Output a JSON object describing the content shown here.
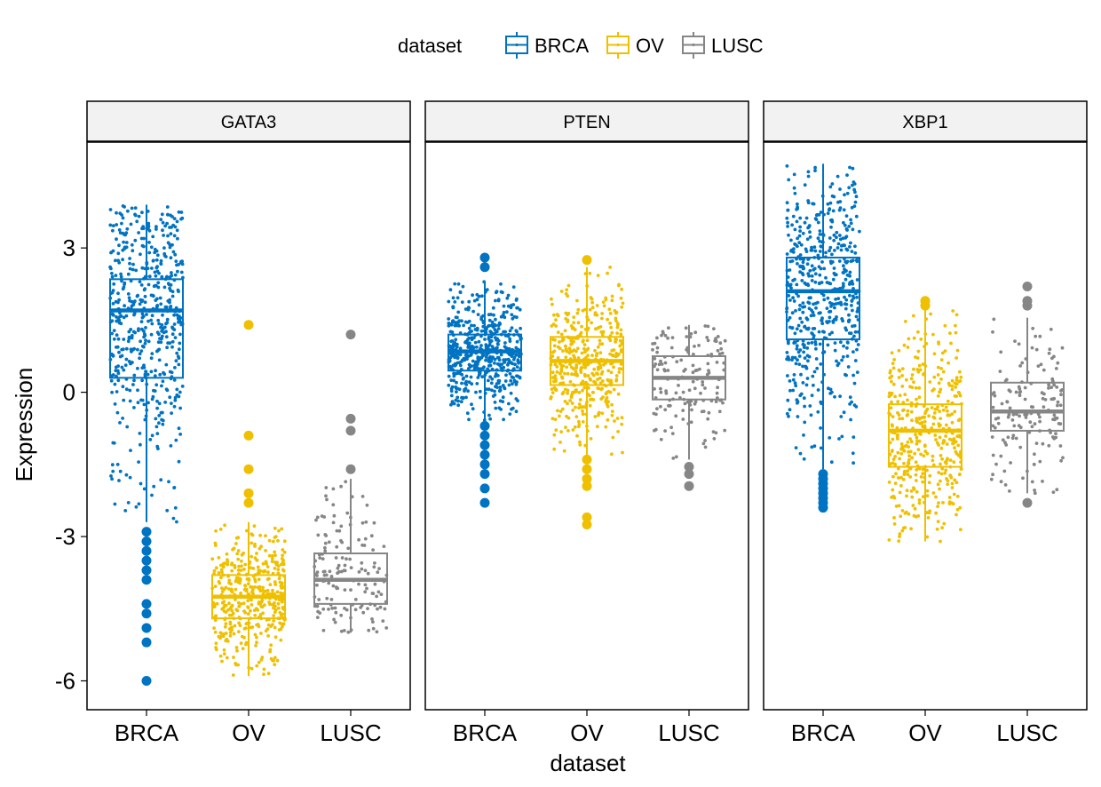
{
  "chart_data": {
    "type": "box",
    "facet_variable": "gene",
    "xlabel": "dataset",
    "ylabel": "Expression",
    "ylim": [
      -6.6,
      5.2
    ],
    "yticks": [
      3,
      0,
      -3,
      -6
    ],
    "ytick_labels": [
      "3",
      "0",
      "-3",
      "-6"
    ],
    "categories": [
      "BRCA",
      "OV",
      "LUSC"
    ],
    "legend": {
      "title": "dataset",
      "position": "top",
      "entries": [
        "BRCA",
        "OV",
        "LUSC"
      ]
    },
    "colors": {
      "BRCA": "#0073C2",
      "OV": "#EFC000",
      "LUSC": "#868686"
    },
    "point_counts": {
      "BRCA": 540,
      "OV": 430,
      "LUSC": 150
    },
    "facets": [
      {
        "label": "GATA3",
        "boxes": [
          {
            "dataset": "BRCA",
            "q1": 0.3,
            "median": 1.7,
            "q3": 2.35,
            "whisker_low": -2.7,
            "whisker_high": 3.9,
            "outliers": [
              -2.9,
              -3.1,
              -3.3,
              -3.5,
              -3.7,
              -3.9,
              -4.4,
              -4.6,
              -4.9,
              -5.2,
              -6.0
            ]
          },
          {
            "dataset": "OV",
            "q1": -4.7,
            "median": -4.25,
            "q3": -3.8,
            "whisker_low": -5.9,
            "whisker_high": -2.7,
            "outliers": [
              1.4,
              -0.9,
              -1.6,
              -2.1,
              -2.3
            ]
          },
          {
            "dataset": "LUSC",
            "q1": -4.4,
            "median": -3.9,
            "q3": -3.35,
            "whisker_low": -5.0,
            "whisker_high": -1.8,
            "outliers": [
              1.2,
              -0.55,
              -0.8,
              -1.6
            ]
          }
        ]
      },
      {
        "label": "PTEN",
        "boxes": [
          {
            "dataset": "BRCA",
            "q1": 0.45,
            "median": 0.85,
            "q3": 1.2,
            "whisker_low": -0.6,
            "whisker_high": 2.3,
            "outliers": [
              2.8,
              2.6,
              -0.7,
              -0.9,
              -1.1,
              -1.3,
              -1.5,
              -1.7,
              -2.0,
              -2.3
            ]
          },
          {
            "dataset": "OV",
            "q1": 0.15,
            "median": 0.65,
            "q3": 1.15,
            "whisker_low": -1.3,
            "whisker_high": 2.6,
            "outliers": [
              2.75,
              -1.4,
              -1.6,
              -1.8,
              -1.95,
              -2.6,
              -2.75
            ]
          },
          {
            "dataset": "LUSC",
            "q1": -0.15,
            "median": 0.3,
            "q3": 0.75,
            "whisker_low": -1.4,
            "whisker_high": 1.4,
            "outliers": [
              -1.55,
              -1.7,
              -1.95
            ]
          }
        ]
      },
      {
        "label": "XBP1",
        "boxes": [
          {
            "dataset": "BRCA",
            "q1": 1.1,
            "median": 2.1,
            "q3": 2.8,
            "whisker_low": -1.6,
            "whisker_high": 4.75,
            "outliers": [
              -1.7,
              -1.8,
              -1.9,
              -2.0,
              -2.1,
              -2.2,
              -2.3,
              -2.4
            ]
          },
          {
            "dataset": "OV",
            "q1": -1.55,
            "median": -0.8,
            "q3": -0.25,
            "whisker_low": -3.1,
            "whisker_high": 1.75,
            "outliers": [
              1.8,
              1.9
            ]
          },
          {
            "dataset": "LUSC",
            "q1": -0.8,
            "median": -0.4,
            "q3": 0.2,
            "whisker_low": -2.1,
            "whisker_high": 1.55,
            "outliers": [
              1.8,
              1.9,
              2.2,
              -2.3
            ]
          }
        ]
      }
    ]
  }
}
